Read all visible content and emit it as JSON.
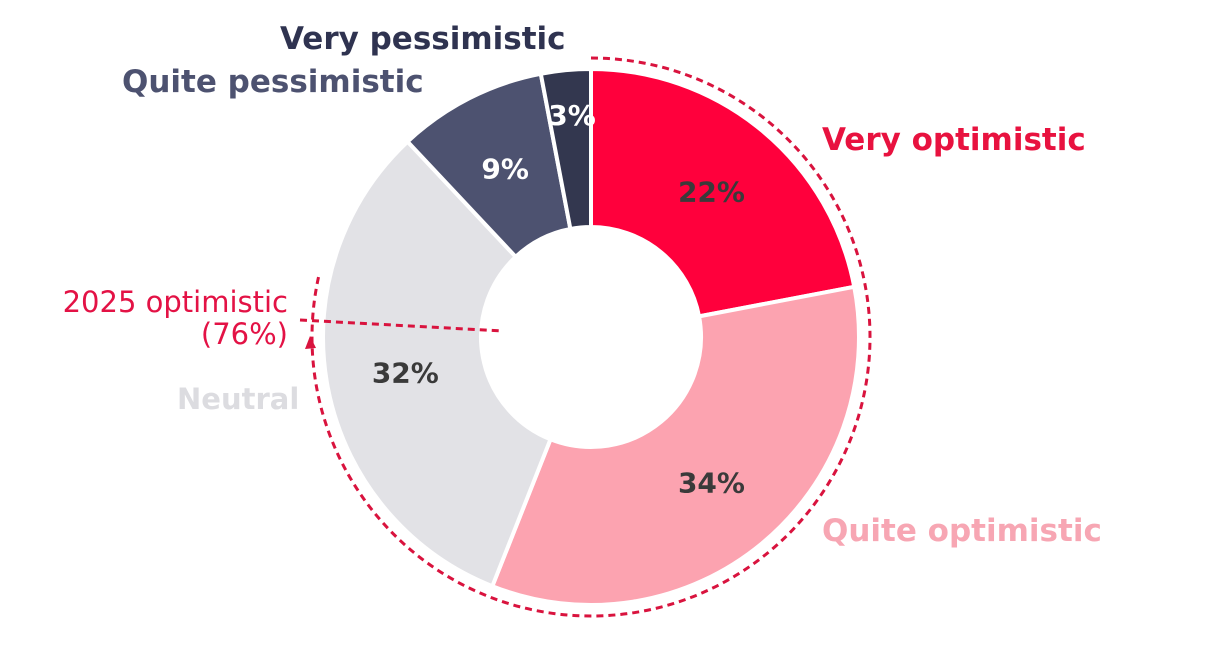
{
  "chart_data": {
    "type": "pie",
    "variant": "donut",
    "title": "",
    "center": [
      591,
      337
    ],
    "outer_radius": 268,
    "inner_radius": 110,
    "start_angle_deg": 0,
    "direction": "clockwise",
    "slice_separator_color": "#ffffff",
    "slices": [
      {
        "name": "Very optimistic",
        "value": 22,
        "value_label": "22%",
        "color": "#ff003c",
        "value_text_color": "#3a3a3a",
        "legend_color": "#e8123f"
      },
      {
        "name": "Quite optimistic",
        "value": 34,
        "value_label": "34%",
        "color": "#fca3b0",
        "value_text_color": "#3a3a3a",
        "legend_color": "#f7a6b3"
      },
      {
        "name": "Neutral",
        "value": 32,
        "value_label": "32%",
        "color": "#e2e2e6",
        "value_text_color": "#3a3a3a",
        "legend_color": "#dcdce0"
      },
      {
        "name": "Quite pessimistic",
        "value": 9,
        "value_label": "9%",
        "color": "#4d5270",
        "value_text_color": "#ffffff",
        "legend_color": "#4d5270"
      },
      {
        "name": "Very pessimistic",
        "value": 3,
        "value_label": "3%",
        "color": "#33374f",
        "value_text_color": "#ffffff",
        "legend_color": "#2f3350"
      }
    ],
    "annotation": {
      "line1": "2025 optimistic",
      "line2": "(76%)",
      "value": 76,
      "color": "#d9133e",
      "style": "dashed arc with arrow"
    },
    "legend_position": "around chart (slice labels)"
  },
  "labels": {
    "very_pessimistic": "Very pessimistic",
    "quite_pessimistic": "Quite pessimistic",
    "very_optimistic": "Very optimistic",
    "quite_optimistic": "Quite optimistic",
    "neutral": "Neutral",
    "annotation_line1": "2025 optimistic",
    "annotation_line2": "(76%)"
  }
}
